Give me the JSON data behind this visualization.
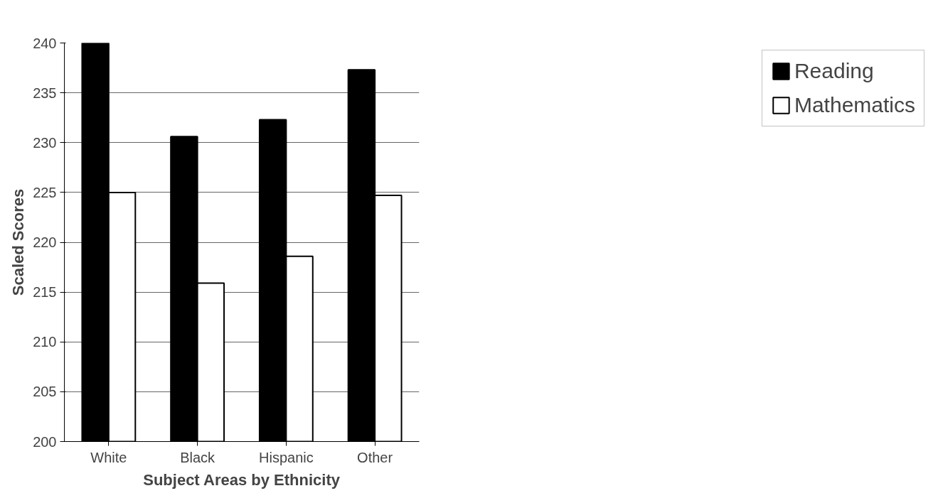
{
  "chart_data": {
    "type": "bar",
    "xlabel": "Subject Areas by Ethnicity",
    "ylabel": "Scaled Scores",
    "categories": [
      "White",
      "Black",
      "Hispanic",
      "Other"
    ],
    "series": [
      {
        "name": "Reading",
        "color": "#000000",
        "values": [
          240,
          230.6,
          232.3,
          237.3
        ]
      },
      {
        "name": "Mathematics",
        "color": "#ffffff",
        "values": [
          225,
          215.9,
          218.6,
          224.7
        ]
      }
    ],
    "ylim": [
      200,
      240
    ],
    "yticks": [
      200,
      205,
      210,
      215,
      220,
      225,
      230,
      235,
      240
    ],
    "grid": "y",
    "legend": "right"
  }
}
